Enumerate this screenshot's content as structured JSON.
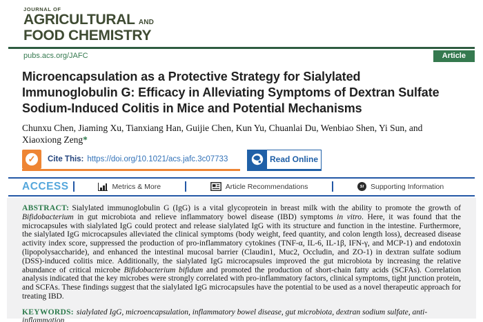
{
  "masthead": {
    "journal_of": "JOURNAL OF",
    "line1": "AGRICULTURAL",
    "line1_and": "AND",
    "line2": "FOOD CHEMISTRY"
  },
  "header": {
    "site_url": "pubs.acs.org/JAFC",
    "article_badge": "Article"
  },
  "article": {
    "title": "Microencapsulation as a Protective Strategy for Sialylated Immunoglobulin G: Efficacy in Alleviating Symptoms of Dextran Sulfate Sodium-Induced Colitis in Mice and Potential Mechanisms",
    "authors": "Chunxu Chen, Jiaming Xu, Tianxiang Han, Guijie Chen, Kun Yu, Chuanlai Du, Wenbiao Shen, Yi Sun, and Xiaoxiong Zeng",
    "corresponding_mark": "*"
  },
  "cite_bar": {
    "cite_label": "Cite This:",
    "doi_url": "https://doi.org/10.1021/acs.jafc.3c07733",
    "read_online_label": "Read Online"
  },
  "access_bar": {
    "access_label": "ACCESS",
    "items": [
      {
        "label": "Metrics & More",
        "icon": "bar-chart-icon"
      },
      {
        "label": "Article Recommendations",
        "icon": "article-icon"
      },
      {
        "label": "Supporting Information",
        "icon": "si-circle-icon",
        "icon_text": "sı"
      }
    ]
  },
  "abstract": {
    "label": "ABSTRACT:",
    "segments": [
      {
        "text": "Sialylated immunoglobulin G (IgG) is a vital glycoprotein in breast milk with the ability to promote the growth of ",
        "italic": false
      },
      {
        "text": "Bifidobacterium",
        "italic": true
      },
      {
        "text": " in gut microbiota and relieve inflammatory bowel disease (IBD) symptoms ",
        "italic": false
      },
      {
        "text": "in vitro",
        "italic": true
      },
      {
        "text": ". Here, it was found that the microcapsules with sialylated IgG could protect and release sialylated IgG with its structure and function in the intestine. Furthermore, the sialylated IgG microcapsules alleviated the clinical symptoms (body weight, feed quantity, and colon length loss), decreased disease activity index score, suppressed the production of pro-inflammatory cytokines (TNF-α, IL-6, IL-1β, IFN-γ, and MCP-1) and endotoxin (lipopolysaccharide), and enhanced the intestinal mucosal barrier (Claudin1, Muc2, Occludin, and ZO-1) in dextran sulfate sodium (DSS)-induced colitis mice. Additionally, the sialylated IgG microcapsules improved the gut microbiota by increasing the relative abundance of critical microbe ",
        "italic": false
      },
      {
        "text": "Bifidobacterium bifidum",
        "italic": true
      },
      {
        "text": " and promoted the production of short-chain fatty acids (SCFAs). Correlation analysis indicated that the key microbes were strongly correlated with pro-inflammatory factors, clinical symptoms, tight junction protein, and SCFAs. These findings suggest that the sialylated IgG microcapsules have the potential to be used as a novel therapeutic approach for treating IBD.",
        "italic": false
      }
    ]
  },
  "keywords": {
    "label": "KEYWORDS:",
    "text": "sialylated IgG, microencapsulation, inflammatory bowel disease, gut microbiota, dextran sodium sulfate, anti-inflammation"
  },
  "icons": {
    "check": "✓",
    "si_badge": "sı"
  },
  "colors": {
    "brand_green_dark": "#3f4b33",
    "brand_green": "#35794f",
    "accent_orange": "#ee8534",
    "link_blue": "#3272b8",
    "read_online_blue": "#2060a7",
    "access_rule_blue": "#2257a5",
    "access_cyan": "#55a7dc",
    "abstract_bg": "#f1f1f2"
  }
}
